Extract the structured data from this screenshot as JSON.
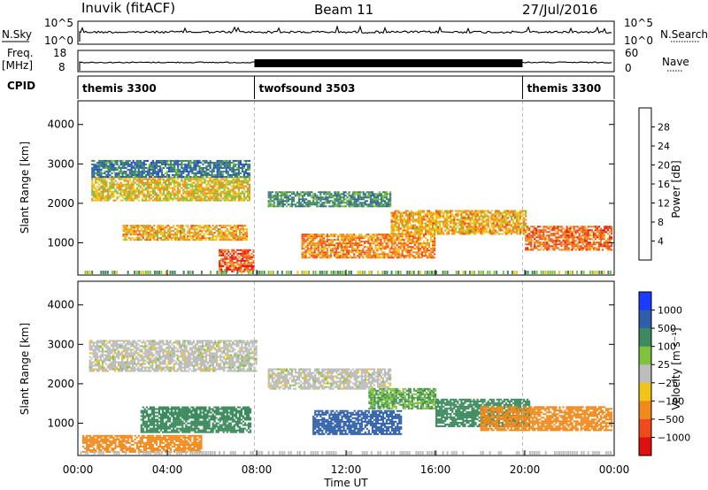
{
  "header": {
    "station": "Inuvik (fitACF)",
    "beam": "Beam 11",
    "date": "27/Jul/2016"
  },
  "strip_nsky": {
    "left_label": "N.Sky",
    "left_ticks": [
      "10^5",
      "10^0"
    ],
    "right_ticks": [
      "10^5",
      "10^0"
    ],
    "right_label": "N.Search"
  },
  "strip_freq": {
    "left_label_1": "Freq.",
    "left_label_2": "[MHz]",
    "left_ticks": [
      "18",
      "8"
    ],
    "right_ticks": [
      "60",
      "0"
    ],
    "right_label": "Nave"
  },
  "cpid": {
    "label": "CPID",
    "segments": [
      {
        "name": "themis 3300",
        "start_hour": 0,
        "end_hour": 7.9
      },
      {
        "name": "twofsound 3503",
        "start_hour": 7.9,
        "end_hour": 19.9
      },
      {
        "name": "themis 3300",
        "start_hour": 19.9,
        "end_hour": 24
      }
    ]
  },
  "chart_data": [
    {
      "type": "heatmap",
      "panel": "power",
      "ylabel": "Slant Range [km]",
      "ylim": [
        180,
        4600
      ],
      "yticks": [
        "1000",
        "2000",
        "3000",
        "4000"
      ],
      "ytick_values": [
        1000,
        2000,
        3000,
        4000
      ],
      "xlim": [
        0,
        24
      ],
      "colorbar": {
        "label": "Power [dB]",
        "ticks": [
          "4",
          "8",
          "12",
          "16",
          "20",
          "24",
          "28"
        ],
        "tick_values": [
          4,
          8,
          12,
          16,
          20,
          24,
          28
        ],
        "range": [
          0,
          32
        ],
        "colors": [
          "#1a3cff",
          "#2f5fa8",
          "#3d8a5e",
          "#7fc23c",
          "#f0c419",
          "#f08a1c",
          "#f04a1c",
          "#e01010"
        ]
      },
      "bands": [
        {
          "t0": 0.6,
          "t1": 7.7,
          "r0": 2050,
          "r1": 2650,
          "value": 18
        },
        {
          "t0": 0.6,
          "t1": 7.7,
          "r0": 2650,
          "r1": 3100,
          "value": 8
        },
        {
          "t0": 2.0,
          "t1": 7.6,
          "r0": 1050,
          "r1": 1450,
          "value": 20
        },
        {
          "t0": 6.3,
          "t1": 7.9,
          "r0": 250,
          "r1": 800,
          "value": 26
        },
        {
          "t0": 8.5,
          "t1": 14.0,
          "r0": 1900,
          "r1": 2300,
          "value": 10
        },
        {
          "t0": 10.0,
          "t1": 16.0,
          "r0": 600,
          "r1": 1200,
          "value": 22
        },
        {
          "t0": 14.0,
          "t1": 20.0,
          "r0": 1200,
          "r1": 1800,
          "value": 20
        },
        {
          "t0": 20.0,
          "t1": 23.9,
          "r0": 800,
          "r1": 1400,
          "value": 24
        }
      ]
    },
    {
      "type": "heatmap",
      "panel": "velocity",
      "ylabel": "Slant Range [km]",
      "ylim": [
        180,
        4600
      ],
      "yticks": [
        "1000",
        "2000",
        "3000",
        "4000"
      ],
      "ytick_values": [
        1000,
        2000,
        3000,
        4000
      ],
      "xlim": [
        0,
        24
      ],
      "xticks": [
        "00:00",
        "04:00",
        "08:00",
        "12:00",
        "16:00",
        "20:00",
        "00:00"
      ],
      "xtick_values": [
        0,
        4,
        8,
        12,
        16,
        20,
        24
      ],
      "xlabel": "Time UT",
      "colorbar": {
        "label": "Velocity [m s⁻¹]",
        "ticks": [
          "1000",
          "500",
          "100",
          "25",
          "−25",
          "−100",
          "−500",
          "−1000"
        ],
        "colors": [
          "#1a3cff",
          "#2f5fa8",
          "#3d8a5e",
          "#7fc23c",
          "#bdbdbd",
          "#f0c419",
          "#f08a1c",
          "#f04a1c",
          "#e01010"
        ]
      },
      "bands": [
        {
          "t0": 0.5,
          "t1": 8.0,
          "r0": 2300,
          "r1": 3100,
          "value": 0
        },
        {
          "t0": 8.5,
          "t1": 14.0,
          "r0": 1850,
          "r1": 2350,
          "value": 0
        },
        {
          "t0": 2.8,
          "t1": 7.7,
          "r0": 750,
          "r1": 1400,
          "value": 150
        },
        {
          "t0": 10.5,
          "t1": 14.5,
          "r0": 700,
          "r1": 1300,
          "value": 600
        },
        {
          "t0": 13.0,
          "t1": 16.0,
          "r0": 1350,
          "r1": 1850,
          "value": 100
        },
        {
          "t0": 16.0,
          "t1": 20.2,
          "r0": 900,
          "r1": 1600,
          "value": 300
        },
        {
          "t0": 18.0,
          "t1": 23.9,
          "r0": 800,
          "r1": 1400,
          "value": -400
        },
        {
          "t0": 0.2,
          "t1": 5.5,
          "r0": 250,
          "r1": 700,
          "value": -300
        }
      ]
    }
  ]
}
